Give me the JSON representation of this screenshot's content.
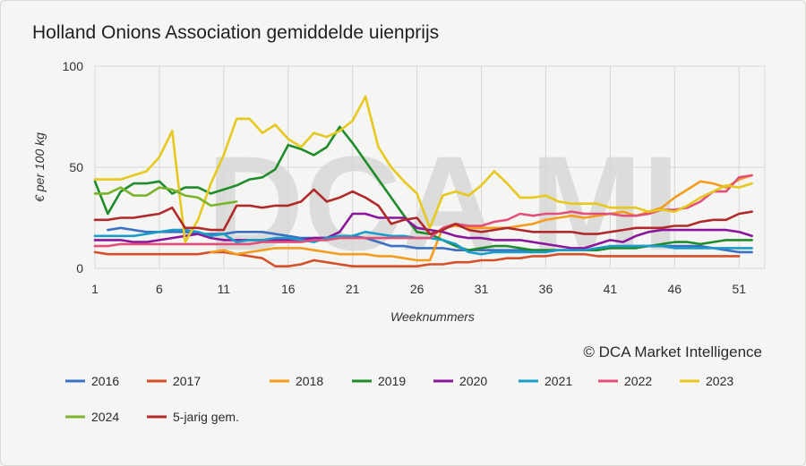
{
  "chart_data": {
    "type": "line",
    "title": "Holland Onions Association gemiddelde uienprijs",
    "xlabel": "Weeknummers",
    "ylabel": "€ per 100 kg",
    "xlim": [
      1,
      53
    ],
    "ylim": [
      0,
      100
    ],
    "xticks": [
      1,
      6,
      11,
      16,
      21,
      26,
      31,
      36,
      41,
      46,
      51
    ],
    "yticks": [
      0,
      50,
      100
    ],
    "grid": true,
    "legend_position": "bottom",
    "watermark": "DCA MI",
    "copyright": "© DCA Market Intelligence",
    "series": [
      {
        "name": "2016",
        "color": "#3a6fc2",
        "x": [
          2,
          3,
          4,
          5,
          6,
          7,
          8,
          9,
          10,
          11,
          12,
          13,
          14,
          15,
          16,
          17,
          18,
          19,
          20,
          21,
          22,
          23,
          24,
          25,
          26,
          27,
          28,
          29,
          30,
          31,
          32,
          33,
          34,
          35,
          36,
          37,
          38,
          39,
          40,
          41,
          42,
          43,
          44,
          45,
          46,
          47,
          48,
          49,
          50,
          51,
          52
        ],
        "y": [
          19,
          20,
          19,
          18,
          18,
          18,
          18,
          17,
          17,
          17,
          18,
          18,
          18,
          17,
          16,
          15,
          15,
          15,
          16,
          16,
          15,
          13,
          11,
          11,
          10,
          10,
          10,
          9,
          9,
          9,
          9,
          9,
          9,
          9,
          9,
          9,
          9,
          9,
          9,
          10,
          11,
          11,
          11,
          11,
          11,
          11,
          11,
          10,
          9,
          8,
          8
        ]
      },
      {
        "name": "2017",
        "color": "#d4502a",
        "x": [
          1,
          2,
          3,
          4,
          5,
          6,
          7,
          8,
          9,
          10,
          11,
          12,
          13,
          14,
          15,
          16,
          17,
          18,
          19,
          20,
          21,
          22,
          23,
          24,
          25,
          26,
          27,
          28,
          29,
          30,
          31,
          32,
          33,
          34,
          35,
          36,
          37,
          38,
          39,
          40,
          41,
          42,
          43,
          44,
          45,
          46,
          47,
          48,
          49,
          50,
          51
        ],
        "y": [
          8,
          7,
          7,
          7,
          7,
          7,
          7,
          7,
          7,
          8,
          8,
          7,
          6,
          5,
          1,
          1,
          2,
          4,
          3,
          2,
          1,
          1,
          1,
          1,
          1,
          1,
          2,
          2,
          3,
          3,
          4,
          4,
          5,
          5,
          6,
          6,
          7,
          7,
          7,
          6,
          6,
          6,
          6,
          6,
          6,
          6,
          6,
          6,
          6,
          6,
          6
        ]
      },
      {
        "name": "2018",
        "color": "#f39c1e",
        "x": [
          10,
          11,
          12,
          13,
          14,
          15,
          16,
          17,
          18,
          19,
          20,
          21,
          22,
          23,
          24,
          25,
          26,
          27,
          28,
          29,
          30,
          31,
          32,
          33,
          34,
          35,
          36,
          37,
          38,
          39,
          40,
          41,
          42,
          43,
          44,
          45,
          46,
          47,
          48,
          49,
          50,
          51,
          52
        ],
        "y": [
          8,
          9,
          7,
          8,
          9,
          10,
          10,
          10,
          9,
          8,
          7,
          7,
          7,
          6,
          6,
          5,
          4,
          4,
          20,
          21,
          20,
          20,
          20,
          20,
          21,
          22,
          24,
          25,
          26,
          25,
          26,
          27,
          28,
          26,
          28,
          30,
          35,
          39,
          43,
          42,
          40,
          44,
          46
        ]
      },
      {
        "name": "2019",
        "color": "#1e8c2a",
        "x": [
          1,
          2,
          3,
          4,
          5,
          6,
          7,
          8,
          9,
          10,
          11,
          12,
          13,
          14,
          15,
          16,
          17,
          18,
          19,
          20,
          21,
          22,
          23,
          24,
          25,
          26,
          27,
          28,
          29,
          30,
          31,
          32,
          33,
          34,
          35,
          36,
          37,
          38,
          39,
          40,
          41,
          42,
          43,
          44,
          45,
          46,
          47,
          48,
          49,
          50,
          51,
          52
        ],
        "y": [
          43,
          27,
          38,
          42,
          42,
          43,
          37,
          40,
          40,
          37,
          39,
          41,
          44,
          45,
          49,
          61,
          59,
          56,
          60,
          70,
          62,
          53,
          44,
          35,
          26,
          18,
          17,
          14,
          11,
          9,
          10,
          11,
          11,
          10,
          9,
          9,
          9,
          9,
          9,
          9,
          10,
          10,
          10,
          11,
          12,
          13,
          13,
          12,
          13,
          14,
          14,
          14
        ]
      },
      {
        "name": "2020",
        "color": "#8a169c",
        "x": [
          1,
          2,
          3,
          4,
          5,
          6,
          7,
          8,
          9,
          10,
          11,
          12,
          13,
          14,
          15,
          16,
          17,
          18,
          19,
          20,
          21,
          22,
          23,
          24,
          25,
          26,
          27,
          28,
          29,
          30,
          31,
          32,
          33,
          34,
          35,
          36,
          37,
          38,
          39,
          40,
          41,
          42,
          43,
          44,
          45,
          46,
          47,
          48,
          49,
          50,
          51,
          52
        ],
        "y": [
          14,
          14,
          14,
          13,
          13,
          14,
          15,
          16,
          17,
          15,
          14,
          14,
          14,
          14,
          14,
          14,
          14,
          15,
          15,
          18,
          27,
          27,
          25,
          25,
          25,
          20,
          19,
          18,
          16,
          15,
          15,
          14,
          14,
          14,
          13,
          12,
          11,
          10,
          10,
          12,
          14,
          13,
          16,
          18,
          19,
          19,
          19,
          19,
          19,
          19,
          18,
          16
        ]
      },
      {
        "name": "2021",
        "color": "#1a9cc8",
        "x": [
          1,
          2,
          3,
          4,
          5,
          6,
          7,
          8,
          9,
          10,
          11,
          12,
          13,
          14,
          15,
          16,
          17,
          18,
          19,
          20,
          21,
          22,
          23,
          24,
          25,
          26,
          27,
          28,
          29,
          30,
          31,
          32,
          33,
          34,
          35,
          36,
          37,
          38,
          39,
          40,
          41,
          42,
          43,
          44,
          45,
          46,
          47,
          48,
          49,
          50,
          51,
          52
        ],
        "y": [
          16,
          16,
          16,
          16,
          17,
          18,
          19,
          19,
          18,
          16,
          17,
          13,
          14,
          14,
          15,
          15,
          14,
          13,
          15,
          16,
          16,
          18,
          17,
          16,
          16,
          15,
          15,
          14,
          12,
          8,
          7,
          8,
          8,
          8,
          8,
          8,
          9,
          9,
          9,
          10,
          11,
          11,
          11,
          11,
          11,
          10,
          10,
          10,
          10,
          10,
          10,
          10
        ]
      },
      {
        "name": "2022",
        "color": "#e2507a",
        "x": [
          1,
          2,
          3,
          4,
          5,
          6,
          7,
          8,
          9,
          10,
          11,
          12,
          13,
          14,
          15,
          16,
          17,
          18,
          19,
          20,
          21,
          22,
          23,
          24,
          25,
          26,
          27,
          28,
          29,
          30,
          31,
          32,
          33,
          34,
          35,
          36,
          37,
          38,
          39,
          40,
          41,
          42,
          43,
          44,
          45,
          46,
          47,
          48,
          49,
          50,
          51,
          52
        ],
        "y": [
          11,
          11,
          12,
          12,
          12,
          12,
          12,
          12,
          12,
          12,
          12,
          12,
          12,
          13,
          13,
          13,
          13,
          14,
          14,
          15,
          15,
          15,
          15,
          15,
          15,
          15,
          15,
          20,
          22,
          21,
          21,
          23,
          24,
          27,
          26,
          27,
          27,
          28,
          27,
          27,
          27,
          26,
          26,
          27,
          29,
          29,
          30,
          33,
          38,
          38,
          45,
          46
        ]
      },
      {
        "name": "2023",
        "color": "#e6c81e",
        "x": [
          1,
          2,
          3,
          4,
          5,
          6,
          7,
          8,
          9,
          10,
          11,
          12,
          13,
          14,
          15,
          16,
          17,
          18,
          19,
          20,
          21,
          22,
          23,
          24,
          25,
          26,
          27,
          28,
          29,
          30,
          31,
          32,
          33,
          34,
          35,
          36,
          37,
          38,
          39,
          40,
          41,
          42,
          43,
          44,
          45,
          46,
          47,
          48,
          49,
          50,
          51,
          52
        ],
        "y": [
          44,
          44,
          44,
          46,
          48,
          55,
          68,
          13,
          24,
          42,
          56,
          74,
          74,
          67,
          71,
          64,
          60,
          67,
          65,
          68,
          73,
          85,
          60,
          50,
          43,
          37,
          20,
          36,
          38,
          36,
          41,
          48,
          42,
          35,
          35,
          36,
          33,
          32,
          32,
          32,
          30,
          30,
          30,
          28,
          29,
          28,
          31,
          35,
          38,
          41,
          40,
          42
        ]
      },
      {
        "name": "2024",
        "color": "#7ab42a",
        "x": [
          1,
          2,
          3,
          4,
          5,
          6,
          7,
          8,
          9,
          10,
          11,
          12
        ],
        "y": [
          37,
          37,
          40,
          36,
          36,
          40,
          39,
          36,
          35,
          31,
          32,
          33
        ]
      },
      {
        "name": "5-jarig gem.",
        "color": "#b02a2a",
        "x": [
          1,
          2,
          3,
          4,
          5,
          6,
          7,
          8,
          9,
          10,
          11,
          12,
          13,
          14,
          15,
          16,
          17,
          18,
          19,
          20,
          21,
          22,
          23,
          24,
          25,
          26,
          27,
          28,
          29,
          30,
          31,
          32,
          33,
          34,
          35,
          36,
          37,
          38,
          39,
          40,
          41,
          42,
          43,
          44,
          45,
          46,
          47,
          48,
          49,
          50,
          51,
          52
        ],
        "y": [
          24,
          24,
          25,
          25,
          26,
          27,
          30,
          20,
          20,
          19,
          19,
          31,
          31,
          30,
          31,
          31,
          33,
          39,
          33,
          35,
          38,
          35,
          31,
          22,
          24,
          25,
          17,
          19,
          22,
          19,
          18,
          19,
          20,
          19,
          18,
          18,
          18,
          18,
          17,
          17,
          18,
          19,
          20,
          20,
          20,
          21,
          21,
          23,
          24,
          24,
          27,
          28
        ]
      }
    ]
  }
}
